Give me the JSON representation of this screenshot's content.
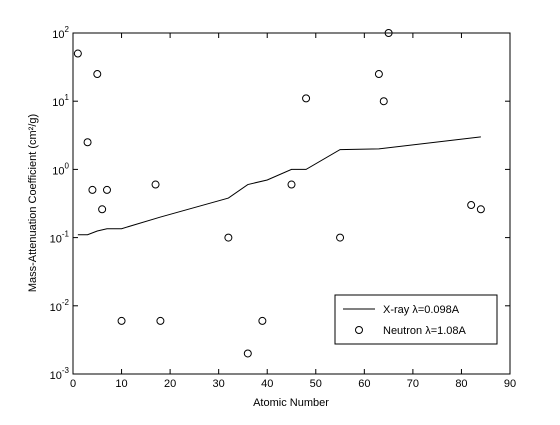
{
  "chart_data": {
    "type": "line-scatter",
    "xlabel": "Atomic Number",
    "ylabel": "Mass-Attenuation Coefficient (cm²/g)",
    "xlim": [
      0,
      90
    ],
    "xticks": [
      0,
      10,
      20,
      30,
      40,
      50,
      60,
      70,
      80,
      90
    ],
    "ylim": [
      0.001,
      100
    ],
    "log_y": true,
    "yticks": [
      {
        "value": 0.001,
        "label": "10^-3"
      },
      {
        "value": 0.01,
        "label": "10^-2"
      },
      {
        "value": 0.1,
        "label": "10^-1"
      },
      {
        "value": 1,
        "label": "10^0"
      },
      {
        "value": 10,
        "label": "10^1"
      },
      {
        "value": 100,
        "label": "10^2"
      }
    ],
    "legend": "lower right",
    "series": [
      {
        "name": "X-ray λ=0.098A",
        "color": "#000000",
        "kind": "line",
        "x": [
          1,
          3,
          5,
          7,
          10,
          18,
          32,
          36,
          40,
          45,
          48,
          55,
          63,
          84
        ],
        "values": [
          0.11,
          0.11,
          0.125,
          0.135,
          0.135,
          0.2,
          0.38,
          0.6,
          0.7,
          1.0,
          1.0,
          1.95,
          2.0,
          3.0
        ]
      },
      {
        "name": "Neutron λ=1.08A",
        "color": "#000000",
        "kind": "scatter",
        "x": [
          1,
          3,
          4,
          5,
          6,
          7,
          10,
          17,
          18,
          32,
          36,
          39,
          45,
          48,
          55,
          63,
          64,
          65,
          82,
          84
        ],
        "values": [
          50,
          2.5,
          0.5,
          25,
          0.26,
          0.5,
          0.006,
          0.6,
          0.006,
          0.1,
          0.002,
          0.006,
          0.6,
          11,
          0.1,
          25,
          10,
          100,
          0.3,
          0.26
        ]
      }
    ]
  }
}
